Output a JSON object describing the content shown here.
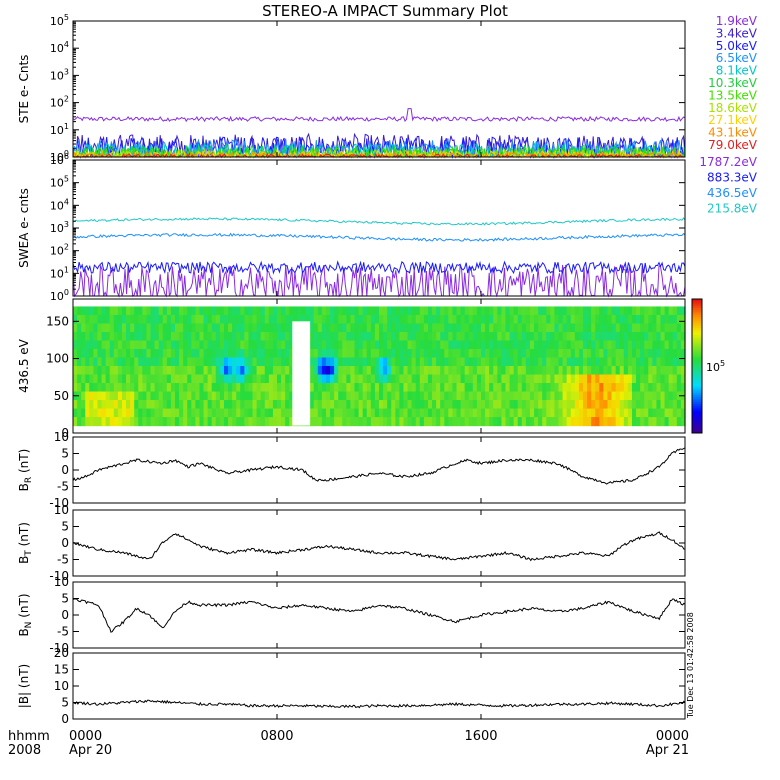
{
  "title": "STEREO-A IMPACT Summary Plot",
  "footer": {
    "left_top": "hhmm",
    "left_bottom": "2008",
    "side_stamp": "Tue Dec 13 01:42:58 2008"
  },
  "time_axis": {
    "range_hours": [
      0,
      24
    ],
    "ticks": [
      {
        "hour": 0,
        "label_top": "0000",
        "label_bottom": "Apr 20"
      },
      {
        "hour": 8,
        "label_top": "0800",
        "label_bottom": ""
      },
      {
        "hour": 16,
        "label_top": "1600",
        "label_bottom": ""
      },
      {
        "hour": 24,
        "label_top": "0000",
        "label_bottom": "Apr 21"
      }
    ]
  },
  "chart_data": [
    {
      "id": "ste",
      "type": "line",
      "ylabel": "STE e- Cnts",
      "yscale": "log",
      "ylim": [
        1,
        100000
      ],
      "ytick_exponents": [
        0,
        1,
        2,
        3,
        4,
        5
      ],
      "series": [
        {
          "name": "1.9keV",
          "color": "#8a2be2",
          "level": 25,
          "noise": 0.08,
          "spike_hour": 13.2,
          "spike_value": 60
        },
        {
          "name": "3.4keV",
          "color": "#3a1fd0",
          "level": 2.2,
          "noise": 0.5
        },
        {
          "name": "5.0keV",
          "color": "#1a1aff",
          "level": 1.8,
          "noise": 0.5
        },
        {
          "name": "6.5keV",
          "color": "#1e90ff",
          "level": 1.5,
          "noise": 0.45
        },
        {
          "name": "8.1keV",
          "color": "#00c8c8",
          "level": 1.3,
          "noise": 0.4
        },
        {
          "name": "10.3keV",
          "color": "#20d040",
          "level": 1.2,
          "noise": 0.35
        },
        {
          "name": "13.5keV",
          "color": "#40e000",
          "level": 1.1,
          "noise": 0.3
        },
        {
          "name": "18.6keV",
          "color": "#a8e000",
          "level": 1.05,
          "noise": 0.25
        },
        {
          "name": "27.1keV",
          "color": "#ffd000",
          "level": 1.03,
          "noise": 0.2
        },
        {
          "name": "43.1keV",
          "color": "#ff8c00",
          "level": 1.02,
          "noise": 0.15
        },
        {
          "name": "79.0keV",
          "color": "#e02020",
          "level": 1.01,
          "noise": 0.1
        }
      ]
    },
    {
      "id": "swea",
      "type": "line",
      "ylabel": "SWEA e- cnts",
      "yscale": "log",
      "ylim": [
        1,
        1000000
      ],
      "ytick_exponents": [
        0,
        1,
        2,
        3,
        4,
        5,
        6
      ],
      "series": [
        {
          "name": "1787.2eV",
          "color": "#8a2be2",
          "level": 3,
          "noise": 0.9
        },
        {
          "name": "883.3eV",
          "color": "#1a1aff",
          "level": 18,
          "noise": 0.25
        },
        {
          "name": "436.5eV",
          "color": "#1e90ff",
          "level": 400,
          "noise": 0.06
        },
        {
          "name": "215.8eV",
          "color": "#20c8c8",
          "level": 2000,
          "noise": 0.05
        }
      ]
    },
    {
      "id": "pad",
      "type": "heatmap",
      "ylabel": "436.5 eV",
      "ylim": [
        0,
        180
      ],
      "yticks": [
        0,
        50,
        100,
        150
      ],
      "colorbar_label": "10^5",
      "colorbar_base": "10",
      "colorbar_exponent": "5"
    },
    {
      "id": "br",
      "type": "line",
      "ylabel": "B",
      "ylabel_sub": "R",
      "ylabel_unit": " (nT)",
      "ylim": [
        -10,
        10
      ],
      "yticks": [
        -10,
        -5,
        0,
        5,
        10
      ],
      "series": [
        {
          "name": "",
          "color": "#000000",
          "x": [
            0,
            0.5,
            1,
            1.5,
            2,
            2.5,
            3,
            3.5,
            4,
            4.5,
            5,
            6,
            7,
            8,
            9,
            9.5,
            10,
            11,
            12,
            13,
            14,
            15,
            15.5,
            16,
            17,
            18,
            19,
            20,
            20.5,
            21,
            22,
            23,
            23.5,
            24
          ],
          "y": [
            -3,
            -2,
            0,
            1,
            2,
            3,
            2.5,
            2,
            3,
            1,
            2,
            -1,
            0,
            1,
            0,
            -3,
            -3,
            -2,
            -1,
            -2,
            -1,
            2,
            3,
            2,
            3,
            3,
            2,
            -2,
            -3,
            -4,
            -3,
            1,
            5,
            7
          ]
        }
      ]
    },
    {
      "id": "bt",
      "type": "line",
      "ylabel": "B",
      "ylabel_sub": "T",
      "ylabel_unit": " (nT)",
      "ylim": [
        -10,
        10
      ],
      "yticks": [
        -10,
        -5,
        0,
        5,
        10
      ],
      "series": [
        {
          "name": "",
          "color": "#000000",
          "x": [
            0,
            0.5,
            1,
            2,
            3,
            3.5,
            4,
            5,
            6,
            7,
            8,
            9,
            10,
            11,
            12,
            13,
            14,
            15,
            16,
            17,
            18,
            19,
            20,
            21,
            21.5,
            22,
            23,
            23.5,
            24
          ],
          "y": [
            0,
            -1,
            -2,
            -3,
            -5,
            0,
            3,
            -1,
            -3,
            -2,
            -3,
            -2,
            -1,
            -2,
            -3,
            -3,
            -4,
            -5,
            -4,
            -3,
            -5,
            -4,
            -3,
            -4,
            -1,
            1,
            3,
            1,
            -2
          ]
        }
      ]
    },
    {
      "id": "bn",
      "type": "line",
      "ylabel": "B",
      "ylabel_sub": "N",
      "ylabel_unit": " (nT)",
      "ylim": [
        -10,
        10
      ],
      "yticks": [
        -10,
        -5,
        0,
        5,
        10
      ],
      "series": [
        {
          "name": "",
          "color": "#000000",
          "x": [
            0,
            1,
            1.5,
            2,
            2.5,
            3,
            3.5,
            4,
            4.5,
            5,
            6,
            7,
            8,
            9,
            10,
            11,
            12,
            13,
            14,
            15,
            16,
            17,
            18,
            19,
            20,
            21,
            22,
            23,
            23.5,
            24
          ],
          "y": [
            5,
            3,
            -5,
            -2,
            2,
            0,
            -4,
            1,
            4,
            3,
            3,
            4,
            2,
            3,
            2,
            1,
            3,
            2,
            0,
            -2,
            0,
            1,
            2,
            1,
            2,
            4,
            1,
            -1,
            5,
            3
          ]
        }
      ]
    },
    {
      "id": "bmag",
      "type": "line",
      "ylabel": "|B| (nT)",
      "ylim": [
        0,
        20
      ],
      "yticks": [
        0,
        5,
        10,
        15,
        20
      ],
      "series": [
        {
          "name": "",
          "color": "#000000",
          "x": [
            0,
            1,
            2,
            3,
            4,
            5,
            6,
            7,
            8,
            9,
            10,
            11,
            12,
            13,
            14,
            15,
            16,
            17,
            18,
            19,
            20,
            21,
            22,
            23,
            24
          ],
          "y": [
            5,
            4.5,
            5,
            5.5,
            5,
            4.5,
            4.5,
            4,
            4,
            4,
            3.8,
            3.8,
            4,
            4,
            4.2,
            4.5,
            4.2,
            4,
            4.2,
            4.5,
            4.5,
            4.8,
            4.5,
            4,
            5
          ]
        }
      ]
    }
  ]
}
